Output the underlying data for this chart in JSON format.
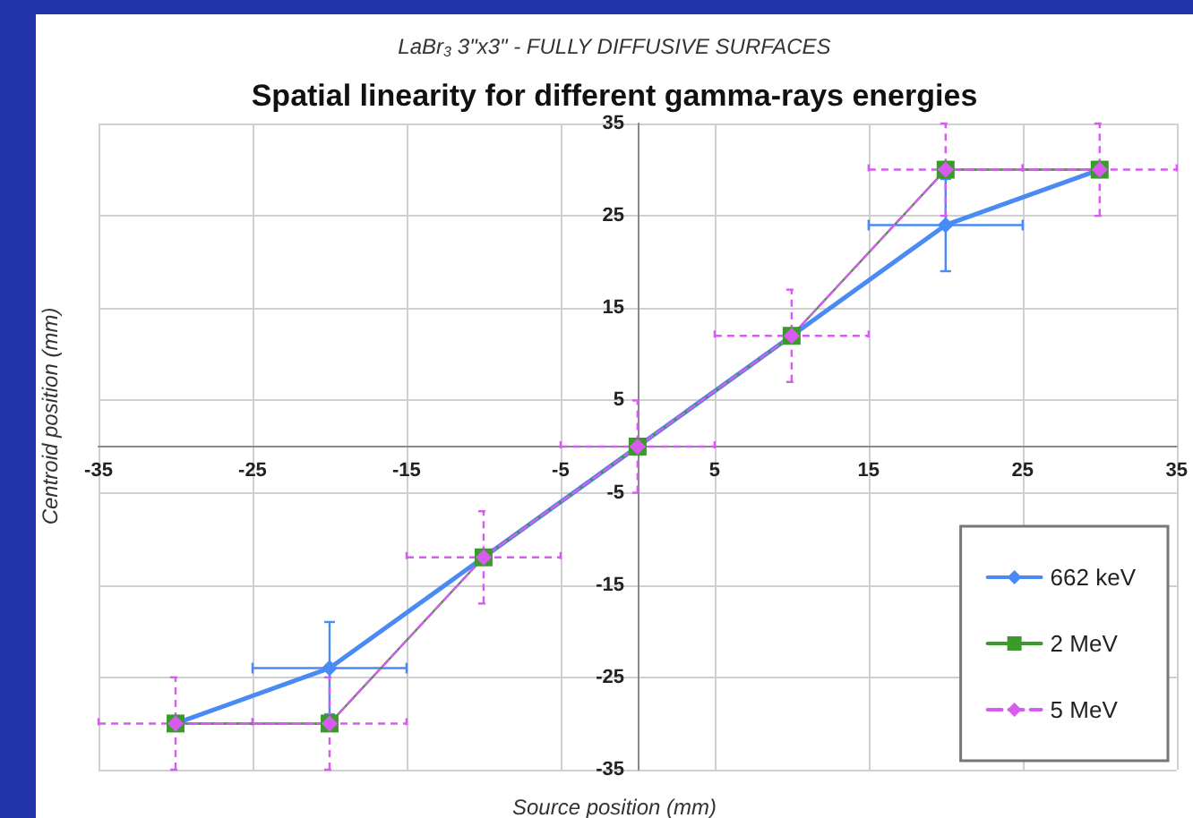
{
  "chart_data": {
    "type": "line",
    "subtitle": "LaBr$_{3}$ 3\"x3\" - FULLY DIFFUSIVE SURFACES",
    "title": "Spatial linearity for different gamma-rays energies",
    "xlabel": "Source position (mm)",
    "ylabel": "Centroid position (mm)",
    "x": [
      -30,
      -20,
      -10,
      0,
      10,
      20,
      30
    ],
    "series": [
      {
        "name": "662 keV",
        "color": "#4a8af4",
        "marker": "diamond",
        "line_style": "solid",
        "values": [
          -30,
          -24,
          -12,
          0,
          12,
          24,
          30
        ],
        "errors": [
          null,
          5,
          null,
          null,
          null,
          5,
          null
        ],
        "xerrors": [
          null,
          5,
          null,
          null,
          null,
          5,
          null
        ]
      },
      {
        "name": "2 MeV",
        "color": "#3c9a2c",
        "marker": "square",
        "line_style": "solid",
        "values": [
          -30,
          -30,
          -12,
          0,
          12,
          30,
          30
        ]
      },
      {
        "name": "5 MeV",
        "color": "#d65cf0",
        "marker": "diamond",
        "line_style": "dashed",
        "values": [
          -30,
          -30,
          -12,
          0,
          12,
          30,
          30
        ],
        "errors": [
          5,
          5,
          5,
          5,
          5,
          5,
          5
        ],
        "xerrors": [
          5,
          5,
          5,
          5,
          5,
          5,
          5
        ]
      }
    ],
    "xlim": [
      -35,
      35
    ],
    "xticks": [
      -35,
      -25,
      -15,
      -5,
      5,
      15,
      25,
      35
    ],
    "ylim": [
      -35,
      35
    ],
    "yticks": [
      -35,
      -25,
      -15,
      -5,
      5,
      15,
      25,
      35
    ],
    "grid": true,
    "legend": "bottom right"
  }
}
